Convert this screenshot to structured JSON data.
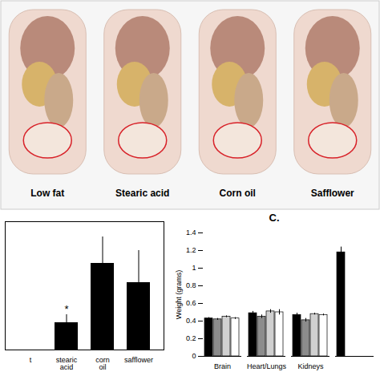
{
  "photos": {
    "labels": [
      "Low fat",
      "Stearic acid",
      "Corn oil",
      "Safflower"
    ]
  },
  "chart_data": [
    {
      "type": "bar",
      "categories": [
        "t",
        "stearic acid",
        "corn oil",
        "safflower"
      ],
      "values": [
        0,
        0.34,
        1.08,
        0.84
      ],
      "errors": [
        0,
        0.1,
        0.33,
        0.4
      ],
      "color": "#000000",
      "ylim": [
        0,
        1.6
      ],
      "tick_labels": "x",
      "annotations": [
        {
          "text": "*",
          "category": "stearic acid"
        }
      ]
    },
    {
      "type": "bar",
      "title": "C.",
      "y_label": "Weight (grams)",
      "categories": [
        "Brain",
        "Heart/Lungs",
        "Kidneys",
        null
      ],
      "series": [
        {
          "color": "#000000",
          "values": [
            0.43,
            0.49,
            0.47,
            1.18
          ],
          "errors": [
            0.01,
            0.02,
            0.02,
            0.06
          ]
        },
        {
          "color": "#8c8c8c",
          "values": [
            0.42,
            0.45,
            0.41,
            null
          ],
          "errors": [
            0.01,
            0.02,
            0.02,
            null
          ]
        },
        {
          "color": "#d0d0d0",
          "values": [
            0.45,
            0.51,
            0.48,
            null
          ],
          "errors": [
            0.01,
            0.02,
            0.01,
            null
          ]
        },
        {
          "color": "#ffffff",
          "values": [
            0.43,
            0.5,
            0.47,
            null
          ],
          "errors": [
            0.01,
            0.03,
            0.01,
            null
          ]
        }
      ],
      "ylim": [
        0,
        1.4
      ],
      "yticks": [
        0,
        0.2,
        0.4,
        0.6,
        0.8,
        1,
        1.2,
        1.4
      ]
    }
  ]
}
